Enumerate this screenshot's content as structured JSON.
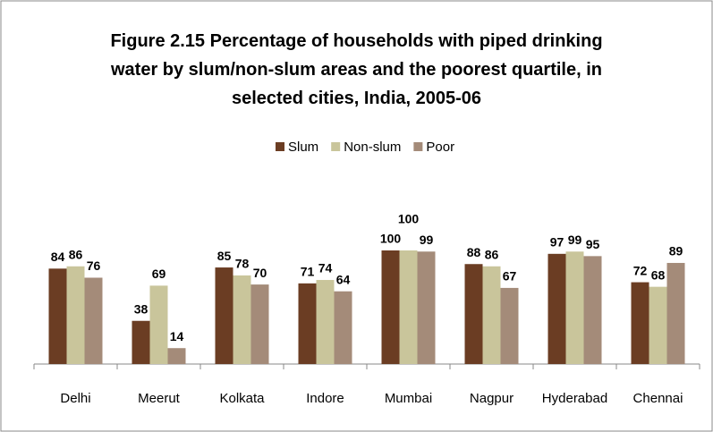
{
  "chart_data": {
    "type": "bar",
    "title": "Figure 2.15 Percentage of households with piped drinking water by slum/non-slum areas and the poorest quartile, in selected cities, India, 2005-06",
    "categories": [
      "Delhi",
      "Meerut",
      "Kolkata",
      "Indore",
      "Mumbai",
      "Nagpur",
      "Hyderabad",
      "Chennai"
    ],
    "series": [
      {
        "name": "Slum",
        "color": "#6b3d23",
        "values": [
          84,
          38,
          85,
          71,
          100,
          88,
          97,
          72
        ]
      },
      {
        "name": "Non-slum",
        "color": "#c9c59b",
        "values": [
          86,
          69,
          78,
          74,
          100,
          86,
          99,
          68
        ]
      },
      {
        "name": "Poor",
        "color": "#a48b79",
        "values": [
          76,
          14,
          70,
          64,
          99,
          67,
          95,
          89
        ]
      }
    ],
    "ylim": [
      0,
      100
    ],
    "legend": "top",
    "grid": false
  }
}
